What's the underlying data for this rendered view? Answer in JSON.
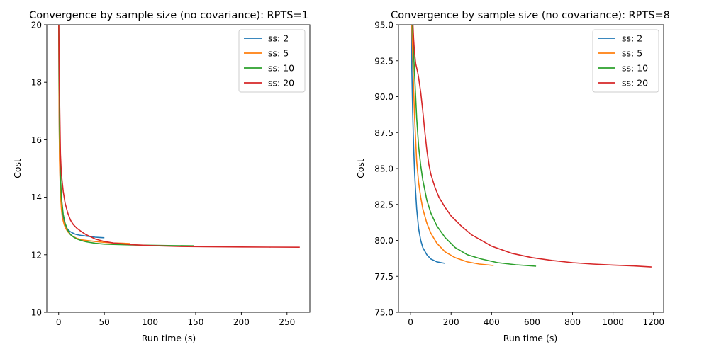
{
  "chart_data": [
    {
      "type": "line",
      "title": "Convergence by sample size (no covariance): RPTS=1",
      "xlabel": "Run time (s)",
      "ylabel": "Cost",
      "xlim": [
        -13,
        275
      ],
      "ylim": [
        10,
        20
      ],
      "xticks": [
        0,
        50,
        100,
        150,
        200,
        250
      ],
      "yticks": [
        10,
        12,
        14,
        16,
        18,
        20
      ],
      "grid": false,
      "legend_position": "top-right",
      "series": [
        {
          "name": "ss: 2",
          "color": "#1f77b4",
          "x": [
            0,
            0.5,
            1,
            2,
            3,
            4,
            5,
            7,
            9,
            12,
            15,
            18,
            20,
            25,
            30,
            35,
            40,
            45,
            50
          ],
          "y": [
            20.5,
            17,
            15.5,
            14.2,
            13.7,
            13.4,
            13.25,
            13.05,
            12.92,
            12.82,
            12.76,
            12.72,
            12.7,
            12.67,
            12.65,
            12.63,
            12.61,
            12.6,
            12.59
          ]
        },
        {
          "name": "ss: 5",
          "color": "#ff7f0e",
          "x": [
            0,
            0.5,
            1,
            2,
            3,
            4,
            6,
            8,
            10,
            13,
            16,
            20,
            25,
            30,
            40,
            50,
            60,
            70,
            78
          ],
          "y": [
            20.5,
            17,
            15.3,
            14.1,
            13.6,
            13.3,
            13.05,
            12.9,
            12.8,
            12.7,
            12.63,
            12.57,
            12.52,
            12.5,
            12.46,
            12.43,
            12.41,
            12.4,
            12.39
          ]
        },
        {
          "name": "ss: 10",
          "color": "#2ca02c",
          "x": [
            0,
            1,
            2,
            3,
            5,
            7,
            10,
            13,
            16,
            20,
            25,
            30,
            40,
            50,
            60,
            80,
            100,
            120,
            148
          ],
          "y": [
            20.5,
            16.5,
            14.8,
            14,
            13.4,
            13.1,
            12.85,
            12.7,
            12.62,
            12.55,
            12.49,
            12.45,
            12.4,
            12.37,
            12.36,
            12.34,
            12.33,
            12.32,
            12.31
          ]
        },
        {
          "name": "ss: 20",
          "color": "#d62728",
          "x": [
            0,
            1,
            2,
            3,
            5,
            7,
            10,
            13,
            16,
            20,
            25,
            30,
            40,
            50,
            60,
            80,
            100,
            130,
            160,
            200,
            230,
            264
          ],
          "y": [
            20.5,
            17.5,
            15.5,
            14.8,
            14.2,
            13.8,
            13.45,
            13.2,
            13.05,
            12.92,
            12.8,
            12.7,
            12.55,
            12.46,
            12.41,
            12.35,
            12.32,
            12.29,
            12.28,
            12.27,
            12.265,
            12.26
          ]
        }
      ]
    },
    {
      "type": "line",
      "title": "Convergence by sample size (no covariance): RPTS=8",
      "xlabel": "Run time (s)",
      "ylabel": "Cost",
      "xlim": [
        -60,
        1250
      ],
      "ylim": [
        75,
        95
      ],
      "xticks": [
        0,
        200,
        400,
        600,
        800,
        1000,
        1200
      ],
      "yticks": [
        75.0,
        77.5,
        80.0,
        82.5,
        85.0,
        87.5,
        90.0,
        92.5,
        95.0
      ],
      "grid": false,
      "legend_position": "top-right",
      "series": [
        {
          "name": "ss: 2",
          "color": "#1f77b4",
          "x": [
            3,
            6,
            10,
            15,
            20,
            25,
            30,
            40,
            50,
            60,
            80,
            100,
            130,
            170
          ],
          "y": [
            95.5,
            92,
            89,
            86.5,
            84.7,
            83.3,
            82.2,
            80.8,
            80,
            79.5,
            79,
            78.7,
            78.5,
            78.4
          ]
        },
        {
          "name": "ss: 5",
          "color": "#ff7f0e",
          "x": [
            5,
            10,
            15,
            20,
            30,
            40,
            50,
            60,
            80,
            100,
            130,
            170,
            220,
            280,
            340,
            410
          ],
          "y": [
            95.5,
            93,
            90.5,
            88.5,
            85.5,
            84,
            83,
            82.2,
            81.2,
            80.5,
            79.8,
            79.2,
            78.8,
            78.5,
            78.35,
            78.25
          ]
        },
        {
          "name": "ss: 10",
          "color": "#2ca02c",
          "x": [
            8,
            15,
            20,
            30,
            40,
            50,
            60,
            80,
            100,
            130,
            170,
            220,
            280,
            350,
            430,
            520,
            620
          ],
          "y": [
            95.5,
            93,
            91.5,
            88.5,
            86.5,
            85.2,
            84.2,
            82.8,
            81.9,
            81,
            80.2,
            79.5,
            79,
            78.7,
            78.45,
            78.3,
            78.2
          ]
        },
        {
          "name": "ss: 20",
          "color": "#d62728",
          "x": [
            10,
            15,
            20,
            25,
            30,
            35,
            40,
            50,
            60,
            70,
            80,
            90,
            100,
            120,
            140,
            170,
            200,
            250,
            300,
            400,
            500,
            600,
            700,
            800,
            900,
            1000,
            1100,
            1190
          ],
          "y": [
            95.5,
            94,
            93,
            92.3,
            92,
            91.7,
            91.3,
            90.3,
            89,
            87.6,
            86.3,
            85.3,
            84.6,
            83.7,
            83,
            82.3,
            81.7,
            81,
            80.4,
            79.6,
            79.1,
            78.8,
            78.6,
            78.45,
            78.35,
            78.28,
            78.22,
            78.15
          ]
        }
      ]
    }
  ]
}
